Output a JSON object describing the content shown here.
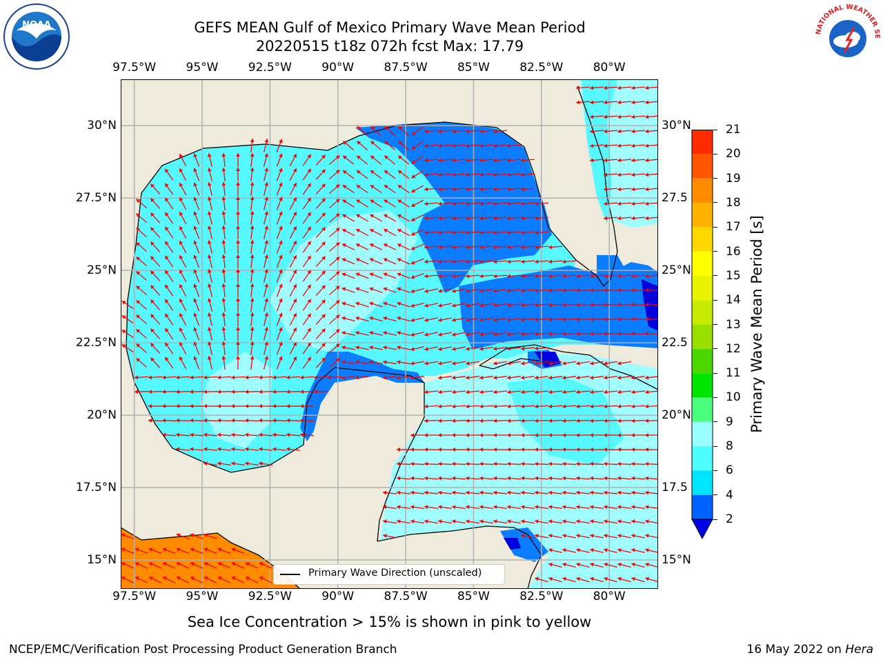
{
  "title": {
    "line1": "GEFS MEAN Gulf of Mexico Primary Wave Mean Period",
    "line2": "20220515 t18z 072h fcst   Max: 17.79"
  },
  "axes": {
    "lon_ticks": [
      "97.5°W",
      "95°W",
      "92.5°W",
      "90°W",
      "87.5°W",
      "85°W",
      "82.5°W",
      "80°W"
    ],
    "lat_ticks_left": [
      "30°N",
      "27.5°N",
      "25°N",
      "22.5°N",
      "20°N",
      "17.5°N",
      "15°N"
    ],
    "lat_ticks_right": [
      "30°N",
      "27.5",
      "25°N",
      "22.5",
      "20°N",
      "17.5",
      "15°N"
    ],
    "lon_range": [
      -98,
      -78.2
    ],
    "lat_range": [
      14,
      31.6
    ]
  },
  "legend": {
    "label": "Primary Wave Direction (unscaled)"
  },
  "colorbar": {
    "title": "Primary Wave Mean Period [s]",
    "tick_labels": [
      "2",
      "4",
      "6",
      "8",
      "9",
      "10",
      "11",
      "12",
      "13",
      "14",
      "15",
      "16",
      "17",
      "18",
      "19",
      "20",
      "21"
    ],
    "level_colors": [
      "#0063ff",
      "#00e5ff",
      "#4dffff",
      "#99ffff",
      "#4cff7f",
      "#00e400",
      "#4cd600",
      "#99e000",
      "#c8ec00",
      "#e9f500",
      "#ffff00",
      "#ffd800",
      "#ffb200",
      "#ff8c00",
      "#ff5700",
      "#ff2a00"
    ],
    "under_color": "#0000e6"
  },
  "map": {
    "land_color": "#efebdc",
    "grid": true,
    "period_fill_colors": {
      "lt4": "#0a7cff",
      "4to6": "#00e8ff",
      "6to8": "#55f9ff",
      "8to9": "#9ffcff",
      "under2": "#0000dd",
      "17to18": "#ff8c00"
    },
    "arrow_color": "#ff0000"
  },
  "notes": {
    "sea_ice": "Sea Ice Concentration > 15% is shown in pink to yellow"
  },
  "footer": {
    "left": "NCEP/EMC/Verification Post Processing Product Generation Branch",
    "right_prefix": "16 May 2022 on ",
    "right_machine": "Hera"
  },
  "logos": {
    "noaa_text": "NOAA",
    "nws_text": "NATIONAL WEATHER SERVICE"
  }
}
